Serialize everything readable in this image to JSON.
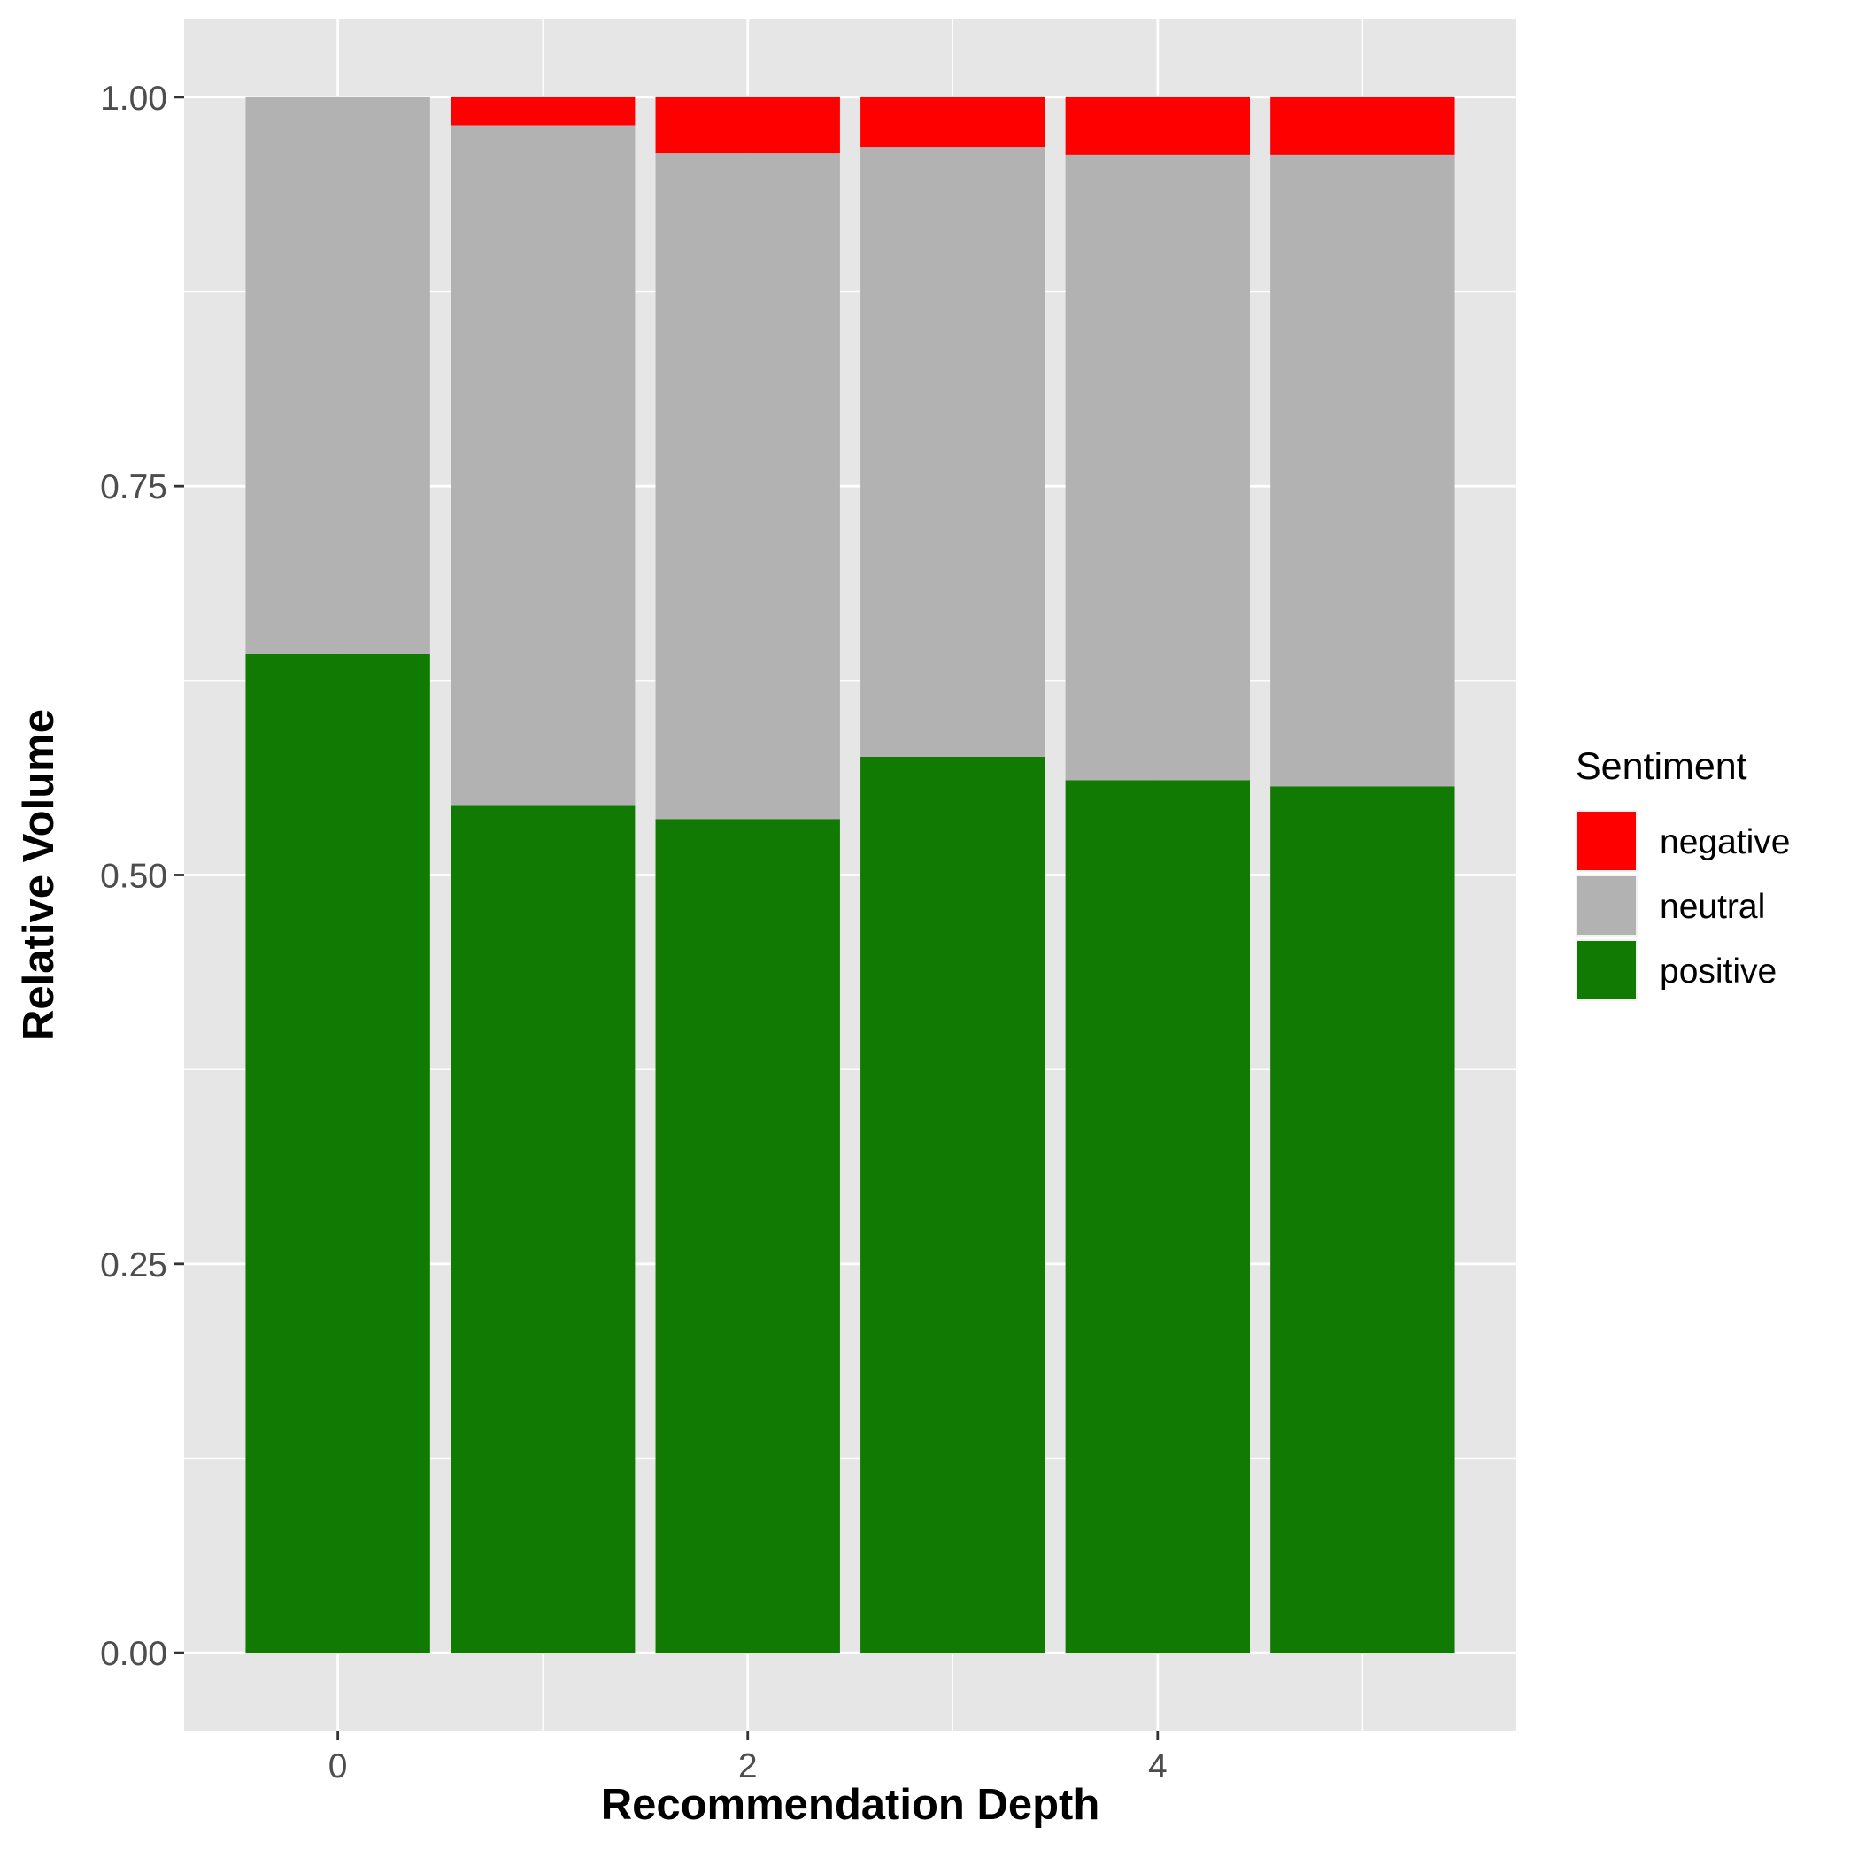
{
  "chart_data": {
    "type": "bar",
    "stacked": true,
    "title": "",
    "xlabel": "Recommendation Depth",
    "ylabel": "Relative Volume",
    "categories": [
      0,
      1,
      2,
      3,
      4,
      5
    ],
    "x_ticks": [
      "0",
      "2",
      "4"
    ],
    "y_ticks": [
      "0.00",
      "0.25",
      "0.50",
      "0.75",
      "1.00"
    ],
    "xlim": [
      -0.75,
      5.75
    ],
    "ylim": [
      -0.05,
      1.05
    ],
    "grid": true,
    "legend": {
      "title": "Sentiment",
      "position": "right",
      "entries": [
        "negative",
        "neutral",
        "positive"
      ]
    },
    "series": [
      {
        "name": "positive",
        "color": "#117A03",
        "values": [
          0.642,
          0.545,
          0.536,
          0.576,
          0.561,
          0.557
        ]
      },
      {
        "name": "neutral",
        "color": "#B2B2B2",
        "values": [
          0.358,
          0.437,
          0.428,
          0.392,
          0.402,
          0.406
        ]
      },
      {
        "name": "negative",
        "color": "#FF0000",
        "values": [
          0.0,
          0.018,
          0.036,
          0.032,
          0.037,
          0.037
        ]
      }
    ]
  }
}
